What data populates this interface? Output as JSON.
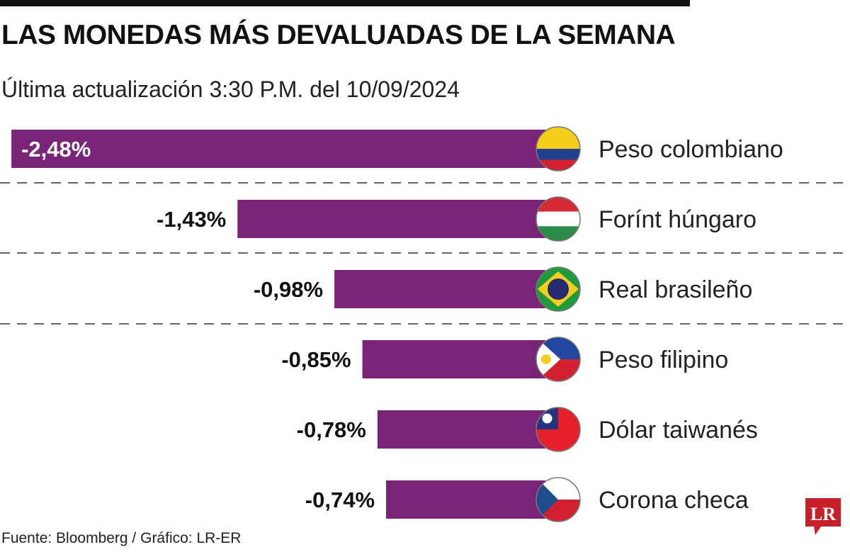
{
  "title": "LAS MONEDAS MÁS DEVALUADAS DE LA SEMANA",
  "subtitle": "Última actualización 3:30 P.M. del 10/09/2024",
  "source": "Fuente: Bloomberg / Gráfico: LR-ER",
  "logo_text": "LR",
  "colors": {
    "bar": "#7a2477",
    "logo": "#c8202a"
  },
  "chart_data": {
    "type": "bar",
    "orientation": "horizontal",
    "categories": [
      "Peso colombiano",
      "Forínt húngaro",
      "Real brasileño",
      "Peso filipino",
      "Dólar taiwanés",
      "Corona checa"
    ],
    "values": [
      -2.48,
      -1.43,
      -0.98,
      -0.85,
      -0.78,
      -0.74
    ],
    "labels": [
      "-2,48%",
      "-1,43%",
      "-0,98%",
      "-0,85%",
      "-0,78%",
      "-0,74%"
    ],
    "flags": [
      "colombia-flag-icon",
      "hungary-flag-icon",
      "brazil-flag-icon",
      "philippines-flag-icon",
      "taiwan-flag-icon",
      "czech-flag-icon"
    ]
  }
}
